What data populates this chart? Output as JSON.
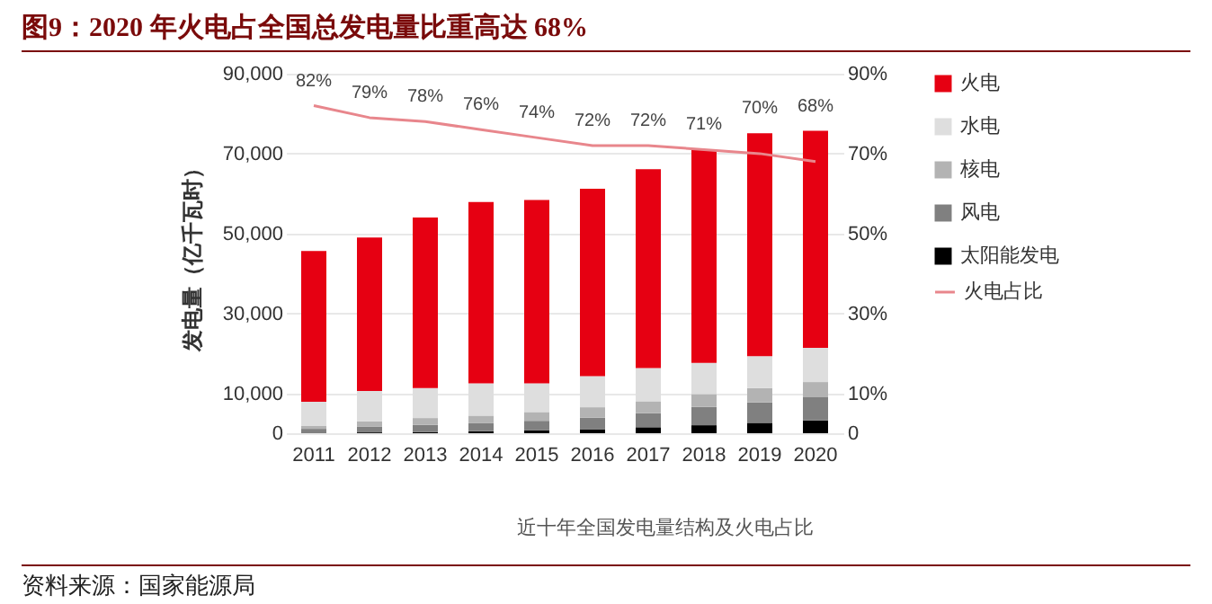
{
  "chart_data": {
    "type": "bar",
    "title": "图9：2020 年火电占全国总发电量比重高达 68%",
    "ylabel": "发电量（亿千瓦时）",
    "annotations": [
      "近十年全国发电量结构及火电占比",
      "资料来源：国家能源局"
    ],
    "categories": [
      "2011",
      "2012",
      "2013",
      "2014",
      "2015",
      "2016",
      "2017",
      "2018",
      "2019",
      "2020"
    ],
    "stacked": true,
    "series": [
      {
        "name": "太阳能发电",
        "color": "#000000",
        "values": [
          null,
          200,
          300,
          500,
          700,
          1000,
          1500,
          2000,
          2600,
          3200
        ]
      },
      {
        "name": "风电",
        "color": "#808080",
        "values": [
          1100,
          1400,
          1800,
          2000,
          2400,
          2900,
          3500,
          4600,
          5100,
          5800
        ]
      },
      {
        "name": "核电",
        "color": "#b3b3b3",
        "values": [
          800,
          1400,
          1700,
          1900,
          2200,
          2600,
          3000,
          3200,
          3600,
          3800
        ]
      },
      {
        "name": "水电",
        "color": "#dedede",
        "values": [
          6000,
          7600,
          7500,
          8100,
          7200,
          7800,
          8300,
          7800,
          8000,
          8600
        ]
      },
      {
        "name": "火电",
        "color": "#e60012",
        "values": [
          37700,
          38400,
          42700,
          45400,
          45900,
          46900,
          49800,
          53300,
          55800,
          54300
        ]
      },
      {
        "name": "火电占比",
        "type": "line",
        "axis": "y2",
        "color": "#e8868c",
        "values": [
          82,
          79,
          78,
          76,
          74,
          72,
          72,
          71,
          70,
          68
        ],
        "value_labels": [
          "82%",
          "79%",
          "78%",
          "76%",
          "74%",
          "72%",
          "72%",
          "71%",
          "70%",
          "68%"
        ]
      }
    ],
    "ylim": [
      0,
      90000
    ],
    "yticks": [
      0,
      {
        "value": 10000,
        "label": "10,000"
      },
      {
        "value": 30000,
        "label": "30,000"
      },
      {
        "value": 50000,
        "label": "50,000"
      },
      {
        "value": 70000,
        "label": "70,000"
      },
      {
        "value": 90000,
        "label": "90,000"
      }
    ],
    "y2lim": [
      0,
      90
    ],
    "y2ticks": [
      0,
      {
        "value": 10,
        "label": "10%"
      },
      {
        "value": 30,
        "label": "30%"
      },
      {
        "value": 50,
        "label": "50%"
      },
      {
        "value": 70,
        "label": "70%"
      },
      {
        "value": 90,
        "label": "90%"
      }
    ],
    "grid": "y",
    "legend": "right"
  }
}
